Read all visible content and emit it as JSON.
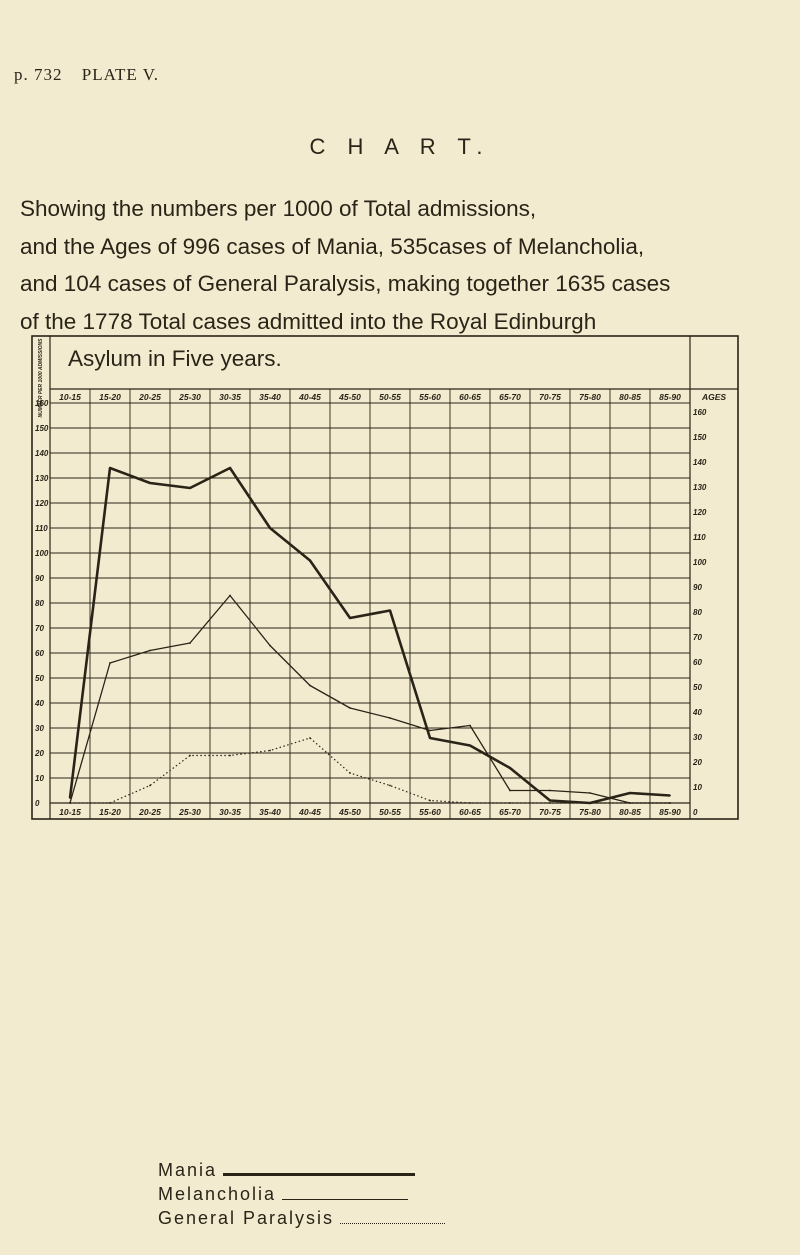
{
  "header": {
    "page": "p. 732",
    "plate": "PLATE V."
  },
  "title": "C H A R T.",
  "description": {
    "line1": "Showing the numbers per 1000 of Total admissions,",
    "line2": "and the Ages of 996 cases of Mania, 535cases of Melancholia,",
    "line3": "and 104 cases of General Paralysis, making together 1635 cases",
    "line4": "of the 1778 Total cases admitted into the Royal Edinburgh",
    "line5": "Asylum in Five years."
  },
  "legend": {
    "mania": "Mania",
    "melancholia": "Melancholia",
    "gp": "General Paralysis"
  },
  "chart_data": {
    "type": "line",
    "ylabel": "NUMBER PER 1000 ADMISSIONS",
    "ages_label": "AGES",
    "categories": [
      "10-15",
      "15-20",
      "20-25",
      "25-30",
      "30-35",
      "35-40",
      "40-45",
      "45-50",
      "50-55",
      "55-60",
      "60-65",
      "65-70",
      "70-75",
      "75-80",
      "80-85",
      "85-90"
    ],
    "y_ticks": [
      0,
      10,
      20,
      30,
      40,
      50,
      60,
      70,
      80,
      90,
      100,
      110,
      120,
      130,
      140,
      150,
      160
    ],
    "ylim": [
      0,
      160
    ],
    "grid": true,
    "series": [
      {
        "name": "Mania",
        "style": "thick",
        "values": [
          2,
          134,
          128,
          126,
          134,
          110,
          97,
          74,
          77,
          26,
          23,
          14,
          1,
          0,
          4,
          3
        ]
      },
      {
        "name": "Melancholia",
        "style": "thin",
        "values": [
          0,
          56,
          61,
          64,
          83,
          63,
          47,
          38,
          34,
          29,
          31,
          5,
          5,
          4,
          0,
          0
        ]
      },
      {
        "name": "General Paralysis",
        "style": "dotted",
        "values": [
          0,
          0,
          7,
          19,
          19,
          21,
          26,
          12,
          7,
          1,
          0,
          0,
          0,
          0,
          0,
          0
        ]
      }
    ]
  }
}
